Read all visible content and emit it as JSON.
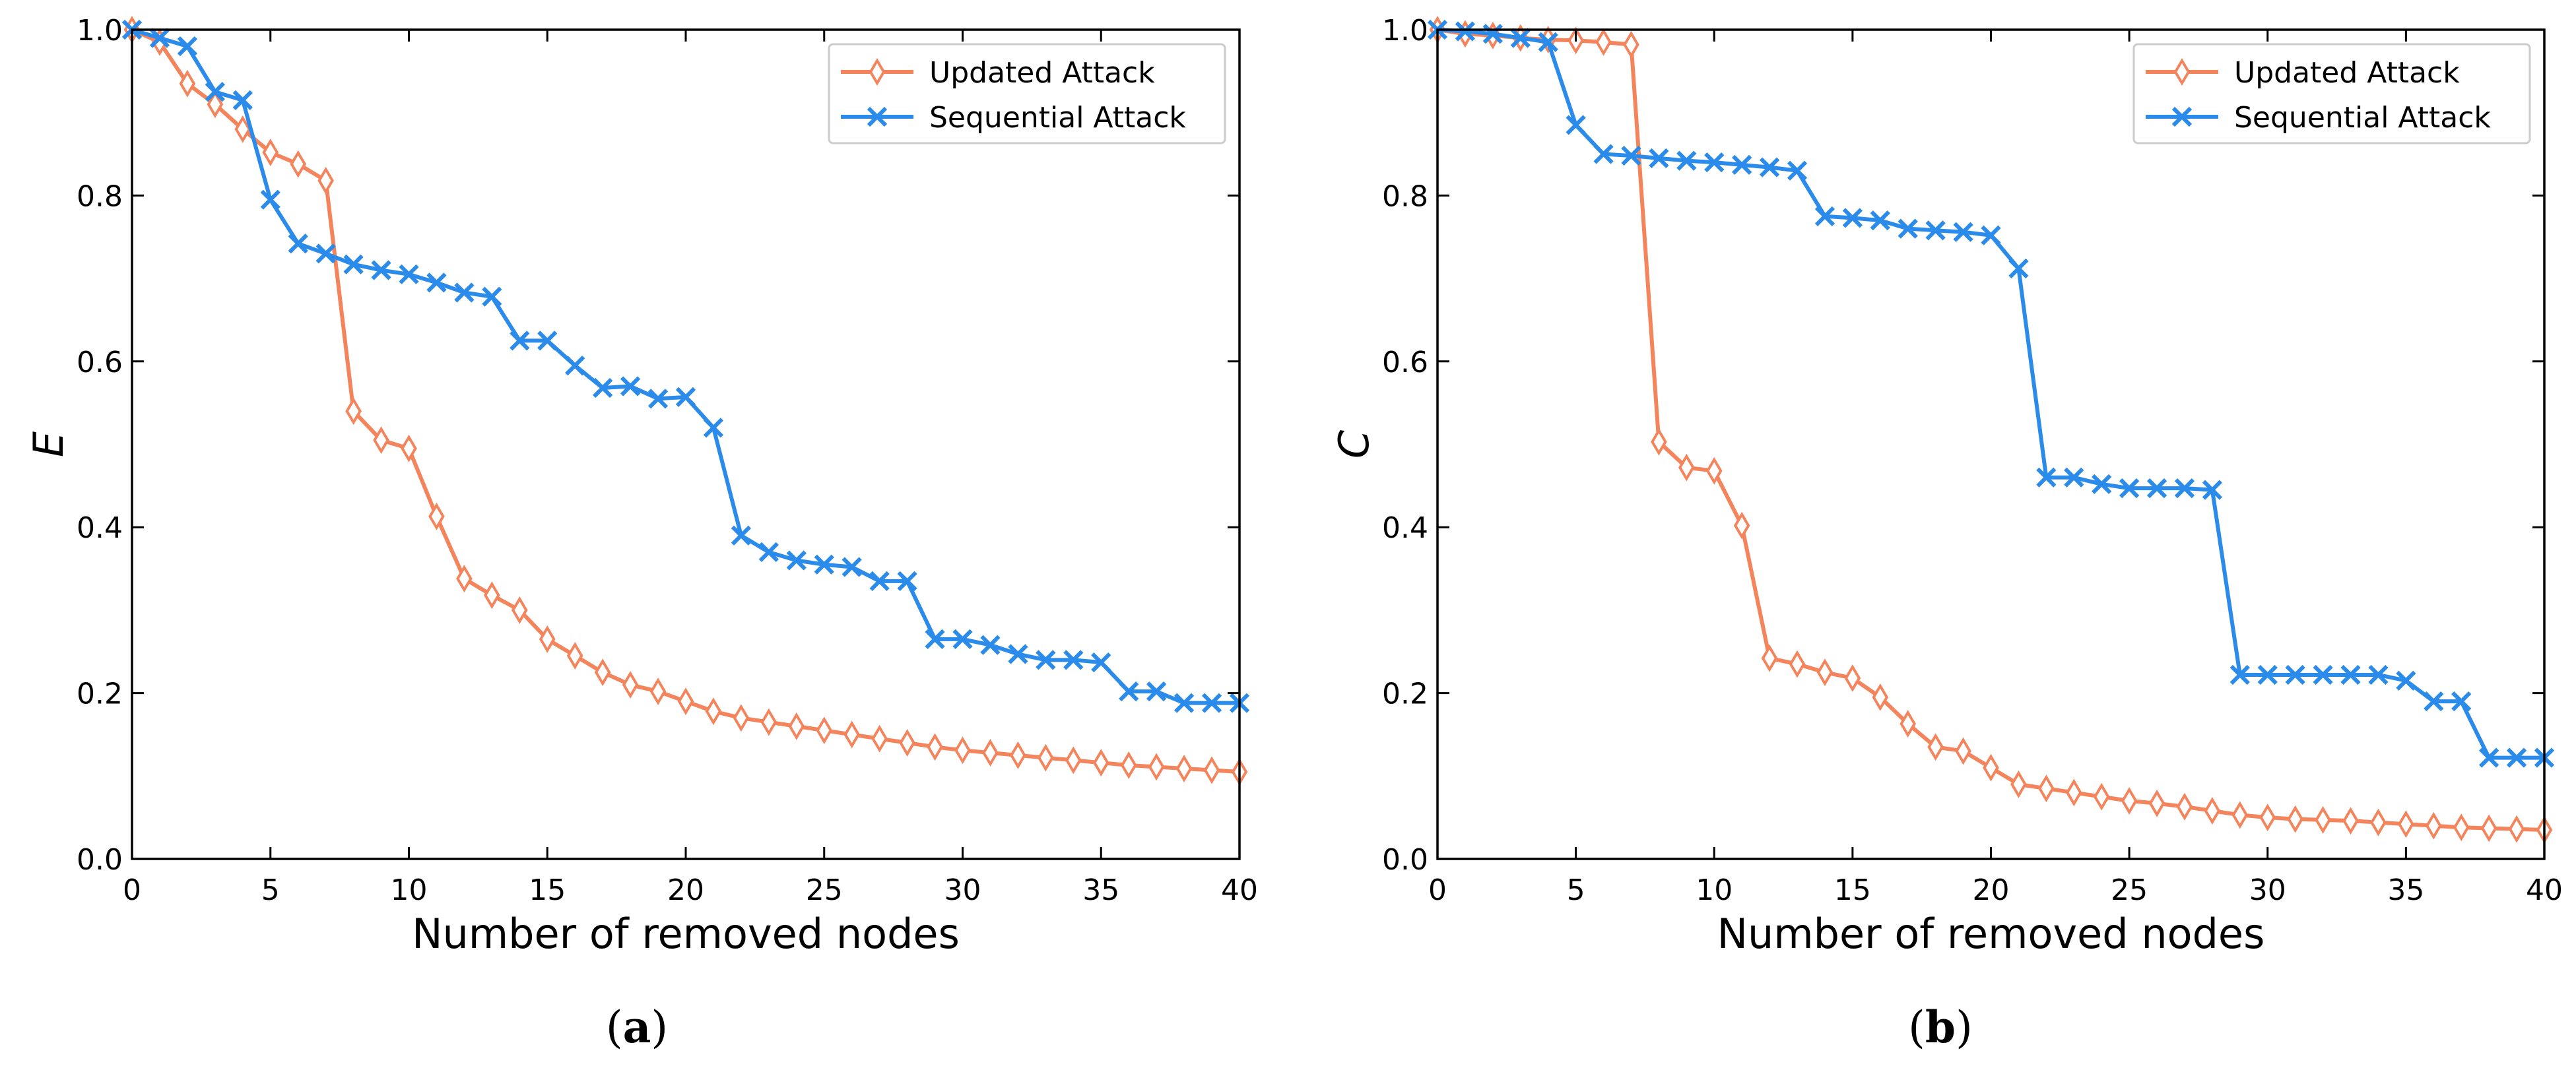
{
  "colors": {
    "updated": "#F4845C",
    "sequential": "#2A8BEA"
  },
  "chart_data": [
    {
      "type": "line",
      "caption_letter": "a",
      "xlabel": "Number of removed nodes",
      "ylabel": "E",
      "xlim": [
        0,
        40
      ],
      "ylim": [
        0,
        1.0
      ],
      "xticks": [
        "0",
        "5",
        "10",
        "15",
        "20",
        "25",
        "30",
        "35",
        "40"
      ],
      "yticks": [
        "0.0",
        "0.2",
        "0.4",
        "0.6",
        "0.8",
        "1.0"
      ],
      "legend": {
        "position": "top-right",
        "entries": [
          "Updated Attack",
          "Sequential Attack"
        ]
      },
      "x": [
        0,
        1,
        2,
        3,
        4,
        5,
        6,
        7,
        8,
        9,
        10,
        11,
        12,
        13,
        14,
        15,
        16,
        17,
        18,
        19,
        20,
        21,
        22,
        23,
        24,
        25,
        26,
        27,
        28,
        29,
        30,
        31,
        32,
        33,
        34,
        35,
        36,
        37,
        38,
        39,
        40
      ],
      "series": [
        {
          "name": "Updated Attack",
          "marker": "diamond",
          "values": [
            1.0,
            0.985,
            0.935,
            0.91,
            0.88,
            0.852,
            0.838,
            0.818,
            0.54,
            0.505,
            0.495,
            0.413,
            0.338,
            0.318,
            0.3,
            0.265,
            0.245,
            0.225,
            0.21,
            0.202,
            0.19,
            0.178,
            0.17,
            0.165,
            0.16,
            0.155,
            0.15,
            0.145,
            0.14,
            0.135,
            0.131,
            0.128,
            0.125,
            0.122,
            0.119,
            0.116,
            0.113,
            0.111,
            0.109,
            0.107,
            0.105
          ]
        },
        {
          "name": "Sequential Attack",
          "marker": "x",
          "values": [
            1.0,
            0.99,
            0.98,
            0.925,
            0.915,
            0.795,
            0.742,
            0.73,
            0.717,
            0.71,
            0.705,
            0.695,
            0.683,
            0.678,
            0.625,
            0.625,
            0.595,
            0.568,
            0.57,
            0.555,
            0.557,
            0.52,
            0.39,
            0.37,
            0.36,
            0.355,
            0.352,
            0.335,
            0.335,
            0.265,
            0.265,
            0.258,
            0.247,
            0.24,
            0.24,
            0.237,
            0.202,
            0.202,
            0.188,
            0.188,
            0.188
          ]
        }
      ]
    },
    {
      "type": "line",
      "caption_letter": "b",
      "xlabel": "Number of removed nodes",
      "ylabel": "C",
      "xlim": [
        0,
        40
      ],
      "ylim": [
        0,
        1.0
      ],
      "xticks": [
        "0",
        "5",
        "10",
        "15",
        "20",
        "25",
        "30",
        "35",
        "40"
      ],
      "yticks": [
        "0.0",
        "0.2",
        "0.4",
        "0.6",
        "0.8",
        "1.0"
      ],
      "legend": {
        "position": "top-right",
        "entries": [
          "Updated Attack",
          "Sequential Attack"
        ]
      },
      "x": [
        0,
        1,
        2,
        3,
        4,
        5,
        6,
        7,
        8,
        9,
        10,
        11,
        12,
        13,
        14,
        15,
        16,
        17,
        18,
        19,
        20,
        21,
        22,
        23,
        24,
        25,
        26,
        27,
        28,
        29,
        30,
        31,
        32,
        33,
        34,
        35,
        36,
        37,
        38,
        39,
        40
      ],
      "series": [
        {
          "name": "Updated Attack",
          "marker": "diamond",
          "values": [
            1.0,
            0.995,
            0.993,
            0.99,
            0.988,
            0.987,
            0.985,
            0.982,
            0.503,
            0.472,
            0.468,
            0.402,
            0.242,
            0.235,
            0.225,
            0.218,
            0.195,
            0.163,
            0.135,
            0.13,
            0.11,
            0.09,
            0.085,
            0.08,
            0.075,
            0.07,
            0.067,
            0.063,
            0.058,
            0.053,
            0.05,
            0.048,
            0.047,
            0.046,
            0.044,
            0.042,
            0.04,
            0.038,
            0.037,
            0.036,
            0.035
          ]
        },
        {
          "name": "Sequential Attack",
          "marker": "x",
          "values": [
            1.0,
            0.998,
            0.995,
            0.99,
            0.985,
            0.885,
            0.85,
            0.848,
            0.845,
            0.842,
            0.84,
            0.837,
            0.834,
            0.83,
            0.775,
            0.773,
            0.77,
            0.76,
            0.758,
            0.756,
            0.752,
            0.712,
            0.46,
            0.46,
            0.452,
            0.447,
            0.447,
            0.447,
            0.445,
            0.222,
            0.222,
            0.222,
            0.222,
            0.222,
            0.222,
            0.215,
            0.19,
            0.19,
            0.122,
            0.122,
            0.122
          ]
        }
      ]
    }
  ]
}
